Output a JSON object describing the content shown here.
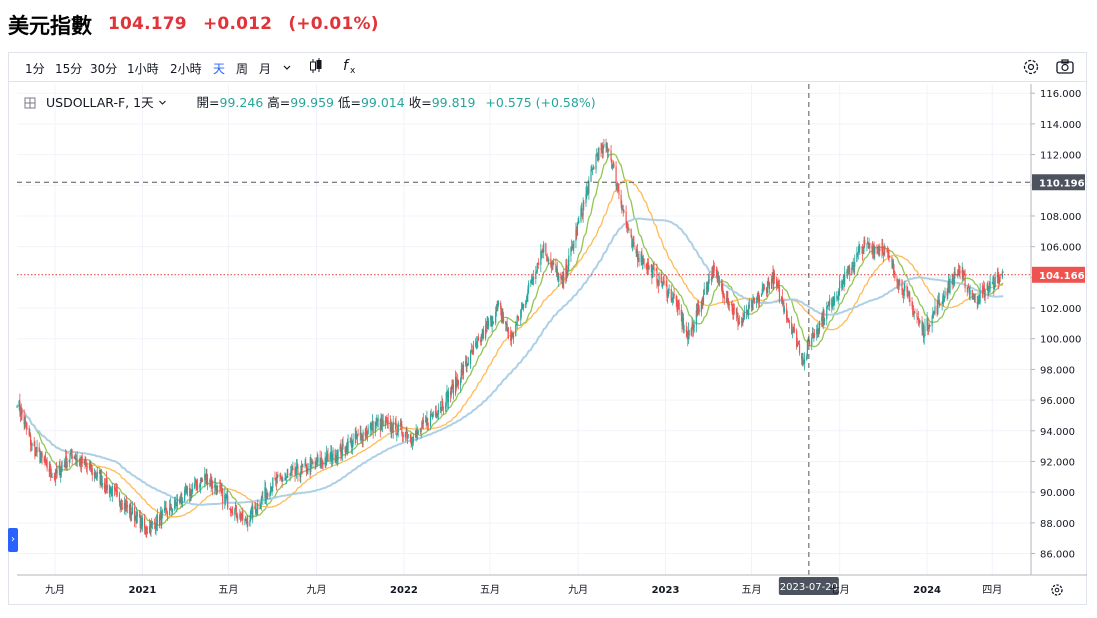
{
  "header": {
    "name": "美元指數",
    "price": "104.179",
    "change": "+0.012",
    "change_pct": "(+0.01%)"
  },
  "toolbar": {
    "timeframes": [
      "1分",
      "15分",
      "30分",
      "1小時",
      "2小時",
      "天",
      "周",
      "月"
    ],
    "active_timeframe": "天",
    "icons": [
      "chevron-down-icon",
      "candlestick-icon",
      "indicator-fx-icon",
      "settings-gear-icon",
      "camera-snapshot-icon"
    ]
  },
  "legend": {
    "symbol": "USDOLLAR-F, 1天",
    "open_label": "開=",
    "open": "99.246",
    "high_label": "高=",
    "high": "99.959",
    "low_label": "低=",
    "low": "99.014",
    "close_label": "收=",
    "close": "99.819",
    "change": "+0.575 (+0.58%)"
  },
  "crosshair": {
    "date_label": "2023-07-20",
    "price_label": "110.196"
  },
  "last_price_label": "104.166",
  "colors": {
    "up": "#26a69a",
    "down": "#ef5350",
    "price_line": "#e53935",
    "ma_fast": "#8bc34a",
    "ma_mid": "#ffb74d",
    "ma_slow": "#a9cde6"
  },
  "chart_data": {
    "type": "candlestick",
    "timeframe": "daily",
    "y_axis": {
      "ticks": [
        "86.000",
        "88.000",
        "90.000",
        "92.000",
        "94.000",
        "96.000",
        "98.000",
        "100.000",
        "102.000",
        "104.000",
        "106.000",
        "108.000",
        "110.000",
        "112.000",
        "114.000",
        "116.000"
      ],
      "range": [
        84.6,
        116.6
      ]
    },
    "x_axis": {
      "ticks": [
        "九月",
        "2021",
        "五月",
        "九月",
        "2022",
        "五月",
        "九月",
        "2023",
        "五月",
        "七月",
        "2024",
        "四月"
      ],
      "range": [
        "2020-07-10",
        "2024-05-25"
      ]
    },
    "price_path": [
      [
        "2020-07-10",
        96.0
      ],
      [
        "2020-07-31",
        93.0
      ],
      [
        "2020-08-31",
        91.0
      ],
      [
        "2020-09-25",
        92.5
      ],
      [
        "2020-10-31",
        91.0
      ],
      [
        "2020-12-31",
        88.0
      ],
      [
        "2021-01-05",
        87.5
      ],
      [
        "2021-01-31",
        88.5
      ],
      [
        "2021-03-31",
        91.0
      ],
      [
        "2021-05-25",
        88.0
      ],
      [
        "2021-06-30",
        90.5
      ],
      [
        "2021-08-15",
        91.5
      ],
      [
        "2021-09-30",
        92.5
      ],
      [
        "2021-11-24",
        94.5
      ],
      [
        "2021-12-31",
        94.0
      ],
      [
        "2022-01-15",
        93.5
      ],
      [
        "2022-03-07",
        96.5
      ],
      [
        "2022-04-30",
        101.0
      ],
      [
        "2022-05-13",
        102.0
      ],
      [
        "2022-05-31",
        100.0
      ],
      [
        "2022-07-14",
        106.0
      ],
      [
        "2022-08-10",
        103.5
      ],
      [
        "2022-09-27",
        112.0
      ],
      [
        "2022-10-13",
        112.5
      ],
      [
        "2022-11-15",
        106.0
      ],
      [
        "2023-01-15",
        102.5
      ],
      [
        "2023-02-01",
        100.0
      ],
      [
        "2023-03-08",
        104.5
      ],
      [
        "2023-04-15",
        101.0
      ],
      [
        "2023-05-31",
        104.0
      ],
      [
        "2023-07-14",
        98.5
      ],
      [
        "2023-07-20",
        99.8
      ],
      [
        "2023-10-03",
        106.0
      ],
      [
        "2023-10-31",
        106.0
      ],
      [
        "2023-12-27",
        100.5
      ],
      [
        "2024-02-14",
        104.5
      ],
      [
        "2024-03-08",
        102.5
      ],
      [
        "2024-04-16",
        104.2
      ]
    ],
    "moving_averages": [
      {
        "name": "",
        "period": 20,
        "color": "#8bc34a"
      },
      {
        "name": "",
        "period": 50,
        "color": "#ffb74d"
      },
      {
        "name": "",
        "period": 100,
        "color": "#a9cde6"
      }
    ],
    "horizontal_lines": [
      {
        "value": 110.196,
        "style": "dashed",
        "color": "#555555"
      },
      {
        "value": 104.166,
        "style": "dotted",
        "color": "#e53935"
      }
    ],
    "crosshair_x": "2023-07-20"
  }
}
